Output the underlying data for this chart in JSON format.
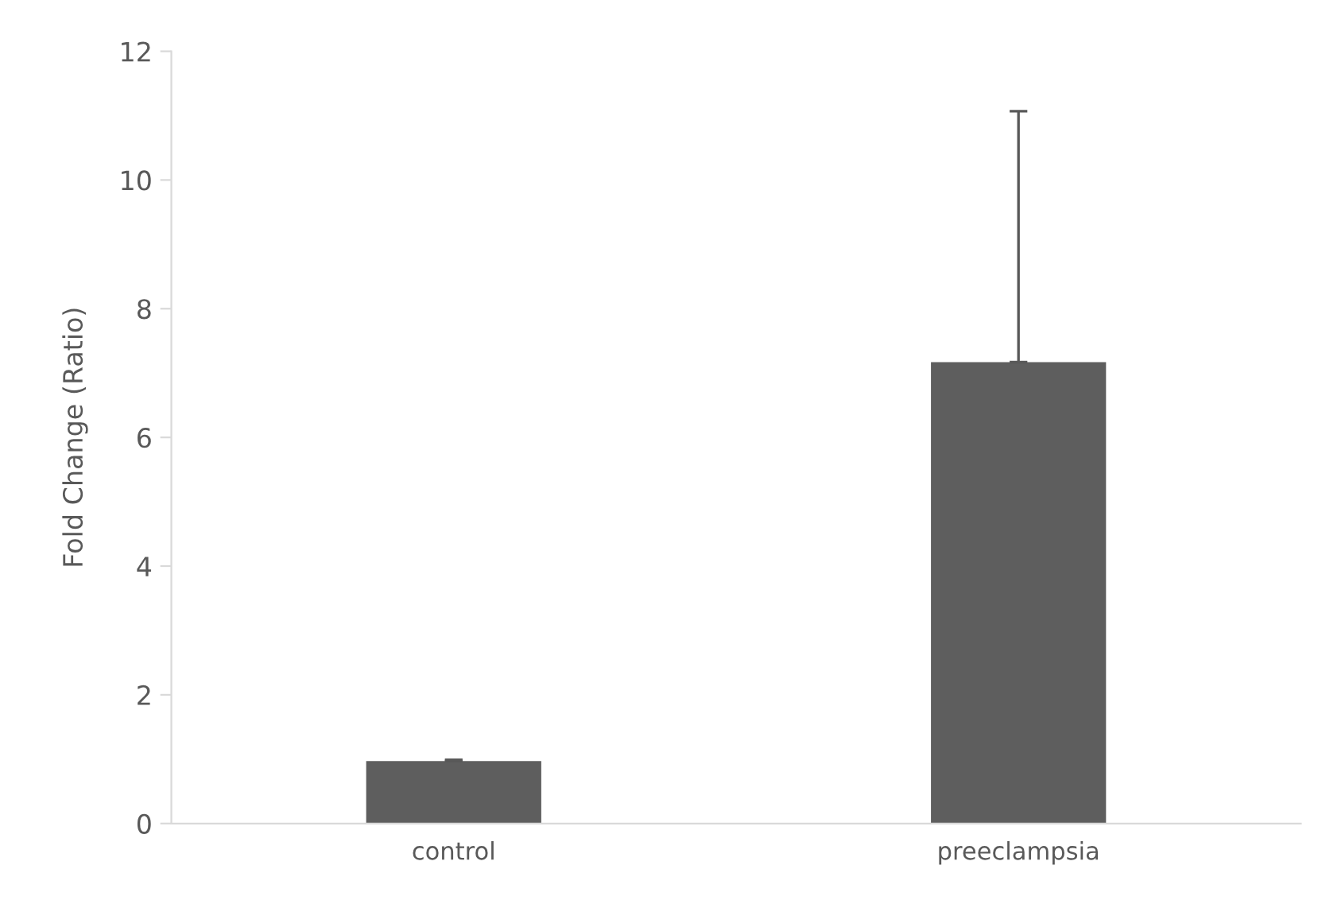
{
  "chart_data": {
    "type": "bar",
    "ylabel": "Fold Change (Ratio)",
    "categories": [
      "control",
      "preeclampsia"
    ],
    "values": [
      0.97,
      7.17
    ],
    "errors": [
      [
        0.97,
        0.99
      ],
      [
        7.17,
        11.07
      ]
    ],
    "color": "#5e5e5e",
    "ylim": [
      0,
      12
    ],
    "yticks": [
      0,
      2,
      4,
      6,
      8,
      10,
      12
    ],
    "grid": false,
    "legend": false
  }
}
